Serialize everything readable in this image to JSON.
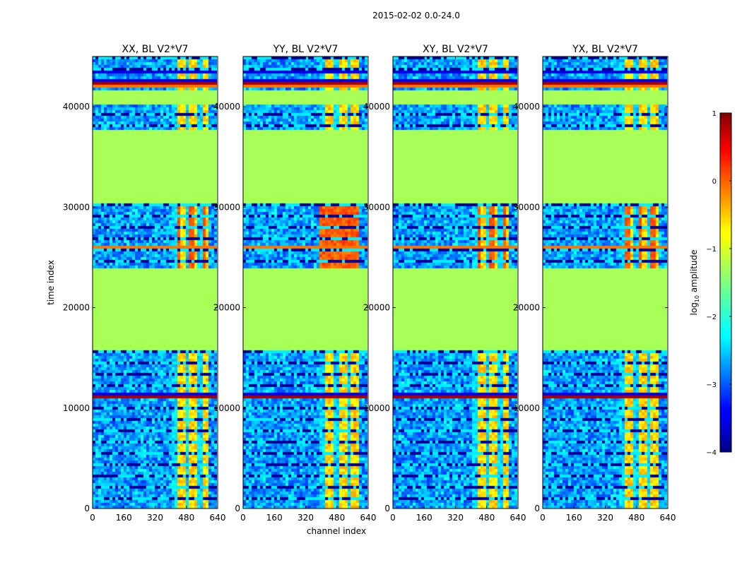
{
  "chart_data": {
    "type": "heatmap",
    "suptitle": "2015-02-02 0.0-24.0",
    "xlabel": "channel index",
    "ylabel": "time index",
    "xlim": [
      0,
      640
    ],
    "ylim": [
      0,
      45000
    ],
    "x_ticks": [
      0,
      160,
      320,
      480,
      640
    ],
    "x_tick_labels": [
      "0",
      "160",
      "320",
      "480",
      "640"
    ],
    "y_ticks": [
      0,
      10000,
      20000,
      30000,
      40000
    ],
    "y_tick_labels": [
      "0",
      "10000",
      "20000",
      "30000",
      "40000"
    ],
    "colorbar": {
      "label": "log₁₀ amplitude",
      "label_base": "log",
      "label_sub": "10",
      "label_rest": " amplitude",
      "min": -4,
      "max": 1,
      "ticks": [
        -4,
        -3,
        -2,
        -1,
        0,
        1
      ],
      "tick_labels": [
        "−4",
        "−3",
        "−2",
        "−1",
        "0",
        "1"
      ],
      "colormap": "jet"
    },
    "panels": [
      {
        "title": "XX, BL V2*V7",
        "yx_bright_band": [
          410,
          590
        ],
        "high_rows": "medium"
      },
      {
        "title": "YY, BL V2*V7",
        "yx_bright_band": [
          400,
          600
        ],
        "high_rows": "strong"
      },
      {
        "title": "XY, BL V2*V7",
        "yx_bright_band": [
          410,
          600
        ],
        "high_rows": "medium"
      },
      {
        "title": "YX, BL V2*V7",
        "yx_bright_band": [
          400,
          600
        ],
        "high_rows": "medium"
      }
    ],
    "flagged_time_ranges": [
      [
        15700,
        23900
      ],
      [
        30300,
        37800
      ],
      [
        40300,
        41700
      ]
    ],
    "flagged_value": -1.3,
    "saturated_time_ranges": [
      [
        43200,
        43700
      ],
      [
        42000,
        42700
      ],
      [
        11000,
        11400
      ],
      [
        25800,
        26100
      ]
    ],
    "colors": {
      "jet_low": "#00007f",
      "jet_mid": "#7fff7f",
      "jet_high": "#7f0000",
      "flag": "#99ff55"
    }
  }
}
